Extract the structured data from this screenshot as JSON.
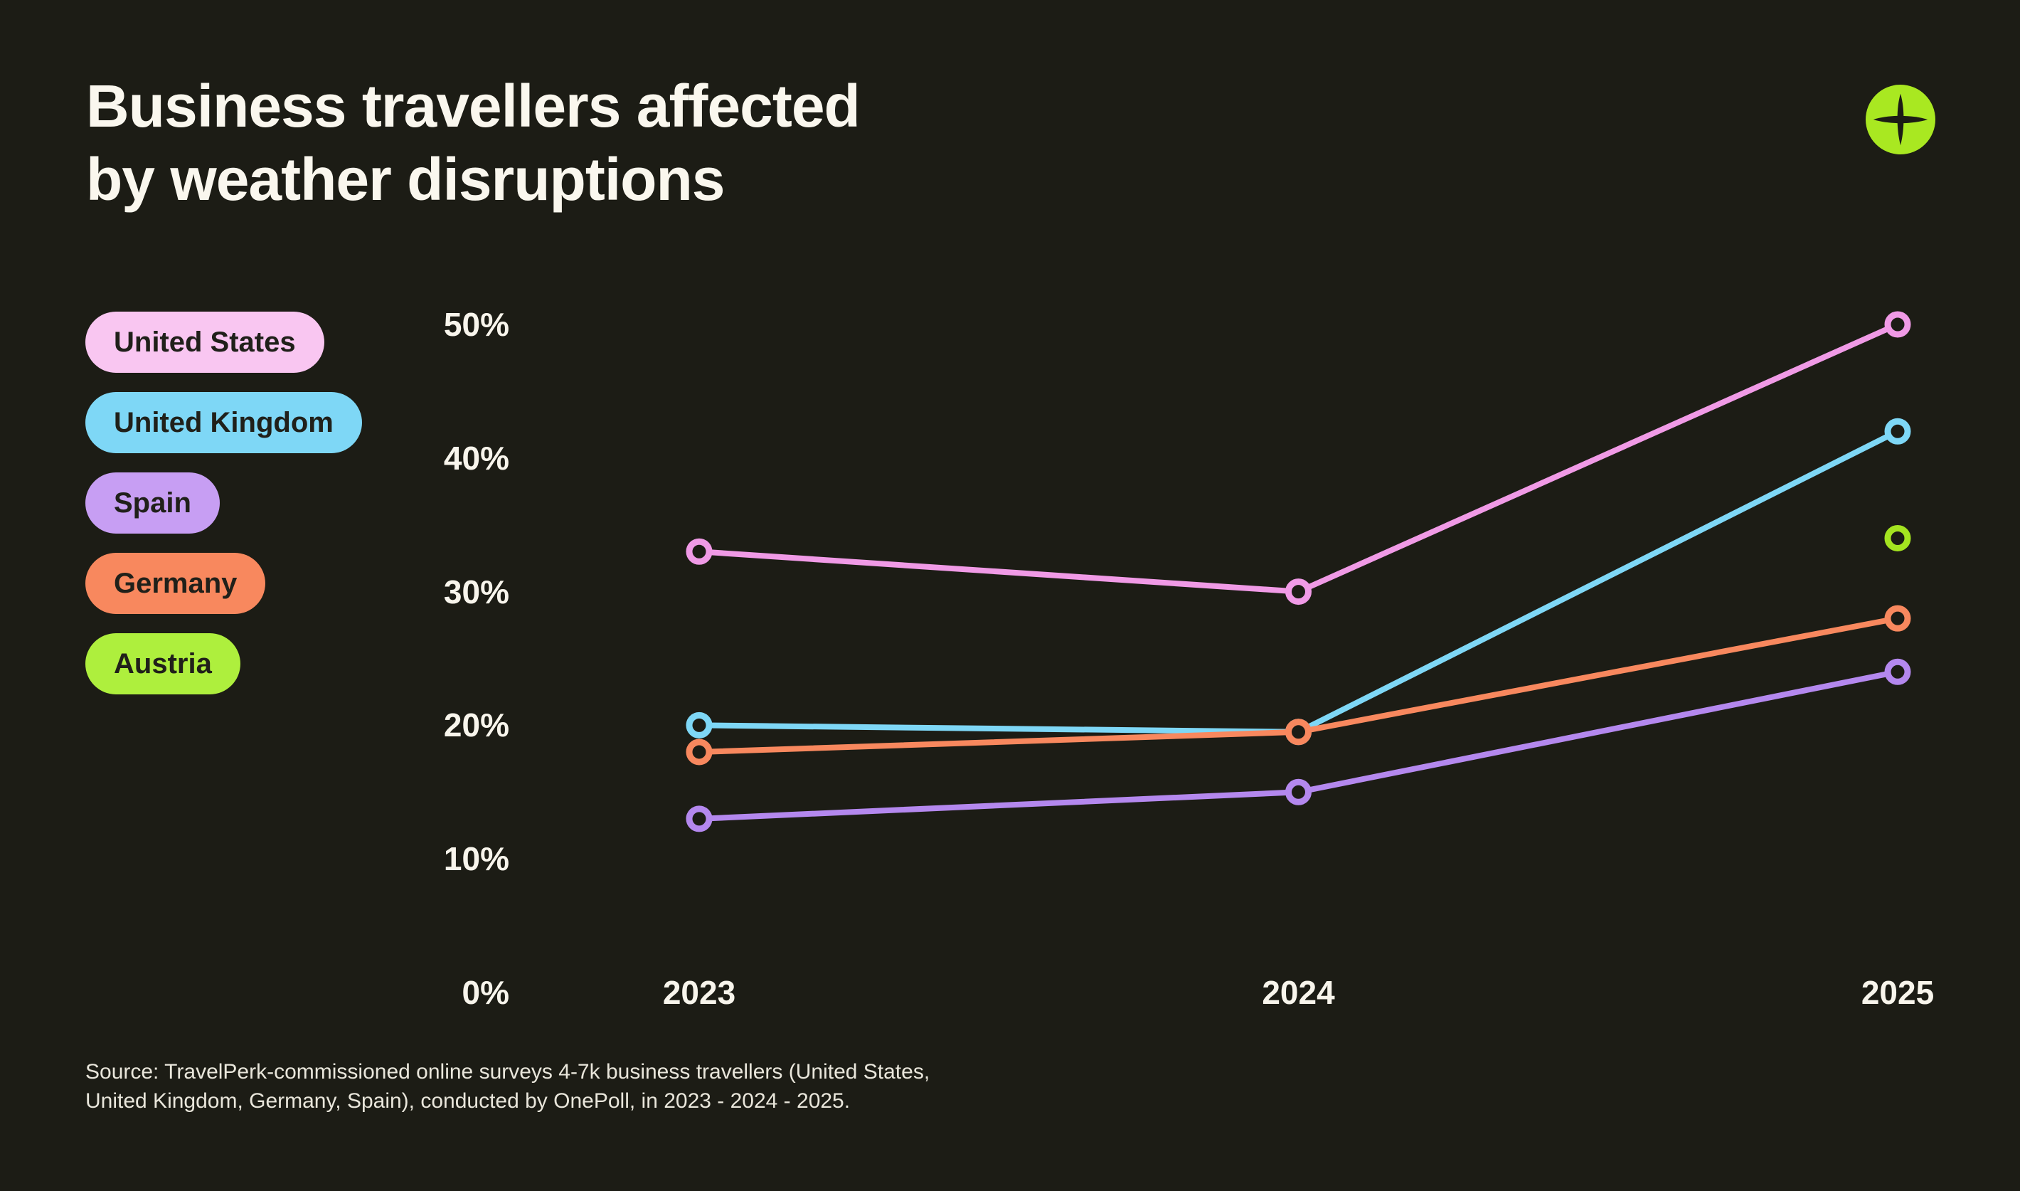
{
  "page": {
    "background": "#1c1c15",
    "text_color": "#faf7ee"
  },
  "header": {
    "title_line1": "Business travellers affected",
    "title_line2": "by weather disruptions",
    "logo_bg": "#a9e821",
    "logo_glyph_color": "#1c1c15"
  },
  "legend": {
    "items": [
      {
        "label": "United States",
        "color": "#f9c6f1"
      },
      {
        "label": "United Kingdom",
        "color": "#7ed7f6"
      },
      {
        "label": "Spain",
        "color": "#c79ef3"
      },
      {
        "label": "Germany",
        "color": "#f8885e"
      },
      {
        "label": "Austria",
        "color": "#aeef3d"
      }
    ]
  },
  "chart_data": {
    "type": "line",
    "title": "Business travellers affected by weather disruptions",
    "categories": [
      "2023",
      "2024",
      "2025"
    ],
    "series": [
      {
        "name": "United States",
        "color": "#f09ae6",
        "values": [
          33,
          30,
          50
        ]
      },
      {
        "name": "United Kingdom",
        "color": "#7ed7f6",
        "values": [
          20,
          19.5,
          42
        ]
      },
      {
        "name": "Spain",
        "color": "#b488ee",
        "values": [
          13,
          15,
          24
        ]
      },
      {
        "name": "Germany",
        "color": "#f8885e",
        "values": [
          18,
          19.5,
          28
        ]
      },
      {
        "name": "Austria",
        "color": "#a4e420",
        "values": [
          null,
          null,
          34
        ]
      }
    ],
    "ylim": [
      0,
      50
    ],
    "yticks": [
      50,
      40,
      30,
      20,
      10,
      0
    ],
    "ytick_labels": [
      "50%",
      "40%",
      "30%",
      "20%",
      "10%",
      "0%"
    ],
    "xlabel": "",
    "ylabel": "",
    "grid": false,
    "legend_position": "left",
    "marker_style": "open-circle"
  },
  "source": {
    "line1": "Source: TravelPerk-commissioned online surveys 4-7k business travellers (United States,",
    "line2": "United Kingdom, Germany, Spain),  conducted by OnePoll, in 2023 - 2024 - 2025."
  }
}
